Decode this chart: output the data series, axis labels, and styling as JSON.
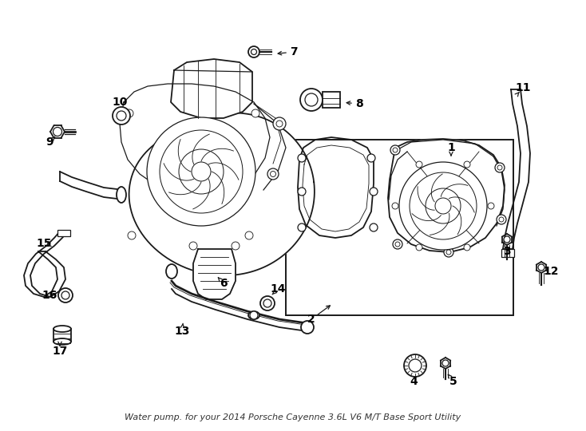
{
  "title": "Water pump. for your 2014 Porsche Cayenne 3.6L V6 M/T Base Sport Utility",
  "background_color": "#ffffff",
  "line_color": "#1a1a1a",
  "text_color": "#000000",
  "font_size_labels": 10,
  "font_size_title": 8,
  "figsize": [
    7.34,
    5.4
  ],
  "dpi": 100
}
